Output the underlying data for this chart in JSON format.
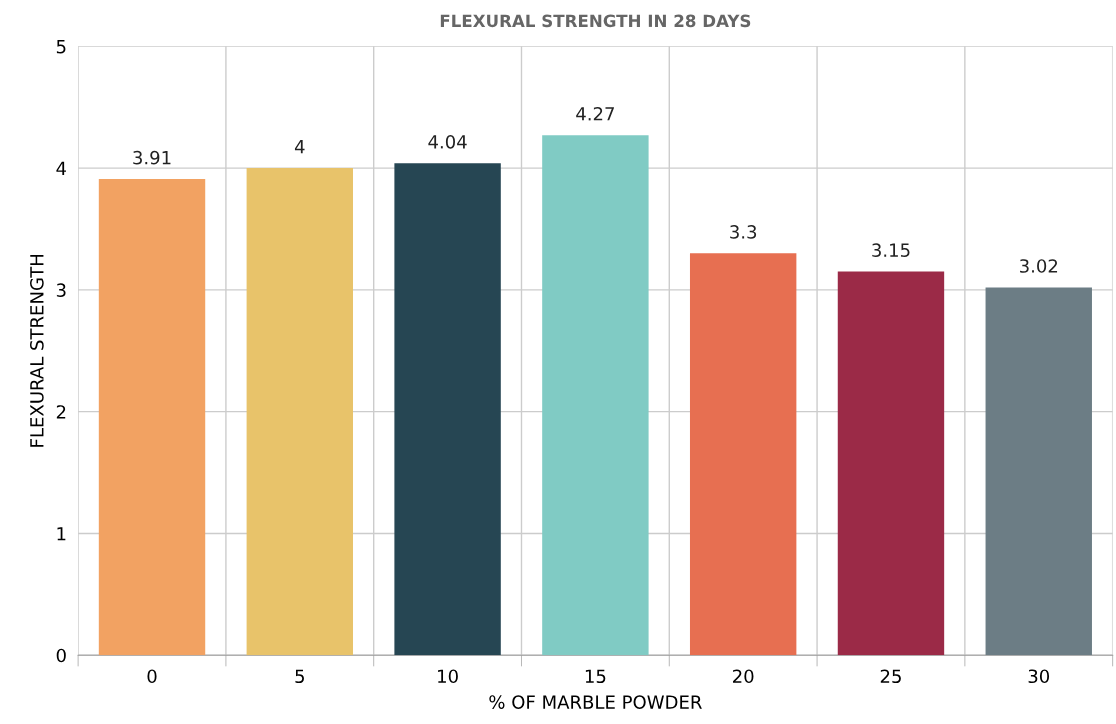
{
  "chart_data": {
    "type": "bar",
    "title": "FLEXURAL STRENGTH IN 28 DAYS",
    "xlabel": "% OF MARBLE POWDER",
    "ylabel": "FLEXURAL STRENGTH",
    "categories": [
      "0",
      "5",
      "10",
      "15",
      "20",
      "25",
      "30"
    ],
    "values": [
      3.91,
      4,
      4.04,
      4.27,
      3.3,
      3.15,
      3.02
    ],
    "colors": [
      "#f2a262",
      "#e8c36a",
      "#264653",
      "#80cbc4",
      "#e76f51",
      "#9b2a47",
      "#6c7d85"
    ],
    "ylim": [
      0,
      5
    ],
    "yticks": [
      0,
      1,
      2,
      3,
      4,
      5
    ],
    "grid": true,
    "data_labels": true
  }
}
